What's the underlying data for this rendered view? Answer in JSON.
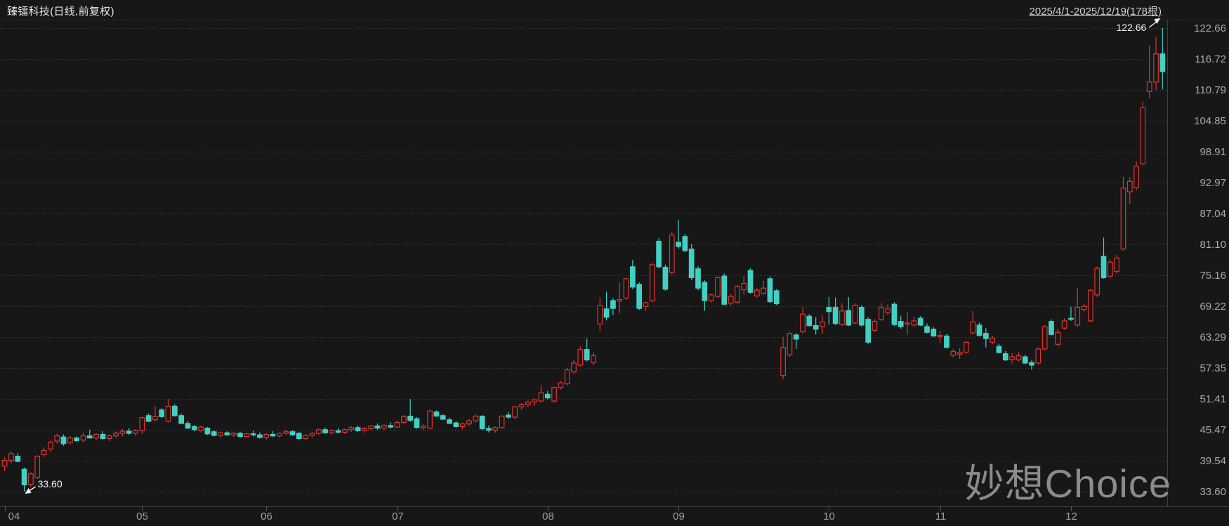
{
  "header": {
    "title": "臻镭科技(日线,前复权)",
    "range_label": "2025/4/1-2025/12/19(178根)"
  },
  "watermark": "妙想Choice",
  "annotations": {
    "high_label": "122.66",
    "high_bar": 177,
    "low_label": "33.60",
    "low_bar": 3
  },
  "colors": {
    "background": "#171717",
    "up": "#e0342c",
    "down": "#43d0c4",
    "grid": "#4e4e4e",
    "border": "#3f3f3f",
    "axis_text": "#a9a9a9",
    "annotation": "#f5f5f5"
  },
  "y_axis": {
    "labels": [
      "122.66",
      "116.72",
      "110.79",
      "104.85",
      "98.91",
      "92.97",
      "87.04",
      "81.10",
      "75.16",
      "69.22",
      "63.29",
      "57.35",
      "51.41",
      "45.47",
      "39.54",
      "33.60"
    ]
  },
  "x_axis": {
    "months": [
      {
        "label": "04",
        "index": 0
      },
      {
        "label": "05",
        "index": 21
      },
      {
        "label": "06",
        "index": 40
      },
      {
        "label": "07",
        "index": 60
      },
      {
        "label": "08",
        "index": 83
      },
      {
        "label": "09",
        "index": 103
      },
      {
        "label": "10",
        "index": 126
      },
      {
        "label": "11",
        "index": 143
      },
      {
        "label": "12",
        "index": 163
      }
    ]
  },
  "chart_data": {
    "type": "candlestick",
    "title": "臻镭科技(日线,前复权)",
    "period": "2025/4/1-2025/12/19",
    "bar_count": 178,
    "price_max": 122.66,
    "price_min": 33.6,
    "grid": true,
    "legend_position": "none",
    "columns": [
      "open",
      "high",
      "low",
      "close"
    ],
    "candles": [
      [
        38.5,
        40.2,
        37.5,
        39.6
      ],
      [
        39.6,
        41.3,
        39.0,
        40.9
      ],
      [
        40.4,
        41.0,
        39.2,
        39.4
      ],
      [
        37.9,
        38.2,
        33.6,
        34.9
      ],
      [
        35.0,
        37.3,
        34.6,
        37.0
      ],
      [
        36.3,
        40.6,
        36.0,
        40.4
      ],
      [
        40.7,
        42.1,
        40.2,
        41.5
      ],
      [
        41.8,
        43.4,
        41.2,
        43.1
      ],
      [
        43.3,
        44.7,
        42.8,
        44.3
      ],
      [
        44.1,
        44.6,
        42.4,
        42.8
      ],
      [
        43.0,
        44.3,
        42.6,
        43.9
      ],
      [
        43.9,
        44.2,
        43.1,
        43.4
      ],
      [
        43.5,
        44.9,
        43.1,
        44.3
      ],
      [
        44.3,
        45.5,
        43.8,
        43.9
      ],
      [
        43.9,
        44.8,
        43.4,
        44.6
      ],
      [
        44.6,
        45.2,
        43.6,
        43.8
      ],
      [
        43.8,
        44.6,
        43.3,
        44.3
      ],
      [
        44.3,
        45.1,
        43.9,
        44.8
      ],
      [
        44.8,
        45.6,
        44.2,
        45.2
      ],
      [
        45.2,
        45.8,
        44.5,
        44.8
      ],
      [
        44.8,
        45.6,
        44.3,
        45.3
      ],
      [
        45.3,
        48.0,
        44.7,
        47.8
      ],
      [
        48.2,
        48.6,
        47.0,
        47.1
      ],
      [
        47.4,
        50.0,
        47.1,
        48.0
      ],
      [
        49.3,
        49.6,
        47.8,
        48.0
      ],
      [
        47.1,
        51.4,
        46.9,
        50.0
      ],
      [
        50.0,
        50.4,
        48.0,
        48.2
      ],
      [
        48.2,
        48.6,
        46.5,
        46.7
      ],
      [
        46.7,
        47.2,
        45.6,
        45.8
      ],
      [
        46.1,
        46.4,
        45.2,
        45.5
      ],
      [
        45.3,
        46.3,
        45.0,
        46.0
      ],
      [
        45.8,
        46.0,
        44.5,
        44.7
      ],
      [
        45.1,
        45.4,
        44.2,
        44.4
      ],
      [
        44.4,
        45.1,
        44.0,
        44.9
      ],
      [
        44.9,
        45.2,
        44.3,
        44.5
      ],
      [
        44.5,
        45.0,
        44.1,
        44.8
      ],
      [
        44.8,
        45.1,
        44.0,
        44.2
      ],
      [
        44.2,
        44.9,
        43.9,
        44.7
      ],
      [
        44.7,
        45.3,
        44.2,
        44.5
      ],
      [
        44.5,
        45.0,
        43.8,
        44.0
      ],
      [
        44.0,
        44.8,
        43.6,
        44.6
      ],
      [
        44.6,
        45.2,
        44.1,
        44.3
      ],
      [
        44.3,
        45.0,
        43.9,
        44.8
      ],
      [
        44.8,
        45.5,
        44.4,
        45.1
      ],
      [
        45.1,
        45.4,
        44.3,
        44.5
      ],
      [
        44.8,
        45.0,
        43.6,
        43.8
      ],
      [
        43.8,
        44.6,
        43.5,
        44.4
      ],
      [
        44.4,
        45.0,
        44.0,
        44.8
      ],
      [
        44.8,
        45.7,
        44.5,
        45.5
      ],
      [
        45.5,
        45.9,
        44.7,
        44.9
      ],
      [
        44.9,
        45.6,
        44.5,
        45.3
      ],
      [
        45.3,
        45.8,
        44.8,
        45.0
      ],
      [
        45.0,
        45.7,
        44.7,
        45.5
      ],
      [
        45.5,
        46.2,
        45.1,
        45.9
      ],
      [
        45.9,
        46.3,
        45.1,
        45.3
      ],
      [
        45.3,
        46.0,
        44.9,
        45.7
      ],
      [
        45.7,
        46.4,
        45.3,
        46.2
      ],
      [
        46.2,
        46.7,
        45.5,
        45.8
      ],
      [
        45.8,
        46.6,
        45.4,
        46.3
      ],
      [
        46.3,
        46.9,
        45.7,
        46.0
      ],
      [
        46.0,
        47.2,
        45.8,
        46.9
      ],
      [
        46.9,
        48.3,
        46.6,
        48.0
      ],
      [
        48.1,
        51.4,
        47.0,
        47.3
      ],
      [
        47.6,
        47.9,
        45.7,
        45.9
      ],
      [
        45.9,
        46.5,
        45.4,
        46.2
      ],
      [
        45.8,
        49.3,
        45.6,
        49.1
      ],
      [
        48.9,
        49.2,
        48.0,
        48.1
      ],
      [
        48.2,
        48.5,
        47.4,
        47.5
      ],
      [
        47.4,
        47.8,
        46.6,
        46.7
      ],
      [
        46.8,
        47.1,
        45.9,
        46.1
      ],
      [
        46.1,
        46.8,
        45.6,
        46.6
      ],
      [
        46.6,
        47.5,
        46.2,
        47.2
      ],
      [
        47.2,
        48.4,
        46.9,
        48.1
      ],
      [
        48.1,
        48.3,
        45.4,
        45.7
      ],
      [
        45.7,
        46.3,
        45.0,
        45.4
      ],
      [
        45.4,
        46.1,
        44.9,
        45.9
      ],
      [
        45.9,
        48.3,
        45.6,
        48.1
      ],
      [
        48.3,
        48.9,
        47.6,
        47.9
      ],
      [
        47.9,
        50.1,
        47.5,
        49.9
      ],
      [
        49.9,
        50.6,
        49.3,
        50.3
      ],
      [
        50.3,
        51.1,
        49.8,
        50.8
      ],
      [
        50.8,
        51.5,
        50.1,
        51.2
      ],
      [
        51.0,
        54.0,
        50.7,
        52.6
      ],
      [
        52.3,
        52.9,
        51.3,
        51.6
      ],
      [
        51.0,
        53.8,
        50.7,
        53.6
      ],
      [
        53.6,
        54.9,
        53.2,
        54.5
      ],
      [
        54.3,
        57.3,
        54.0,
        57.0
      ],
      [
        56.6,
        58.9,
        56.2,
        58.3
      ],
      [
        57.9,
        61.5,
        57.6,
        60.9
      ],
      [
        60.9,
        63.0,
        58.6,
        58.9
      ],
      [
        58.4,
        60.3,
        57.9,
        59.7
      ],
      [
        65.8,
        70.9,
        64.5,
        69.4
      ],
      [
        68.7,
        72.0,
        66.5,
        67.1
      ],
      [
        70.3,
        70.8,
        67.5,
        68.8
      ],
      [
        70.2,
        73.8,
        67.8,
        70.5
      ],
      [
        70.8,
        74.7,
        70.4,
        74.5
      ],
      [
        76.8,
        78.1,
        72.5,
        72.9
      ],
      [
        73.4,
        73.8,
        68.5,
        68.8
      ],
      [
        69.2,
        70.1,
        68.3,
        69.9
      ],
      [
        70.3,
        77.6,
        70.0,
        77.2
      ],
      [
        81.7,
        82.3,
        76.5,
        76.8
      ],
      [
        76.7,
        77.2,
        72.2,
        72.5
      ],
      [
        75.7,
        83.5,
        75.3,
        82.9
      ],
      [
        81.5,
        85.8,
        80.3,
        80.7
      ],
      [
        82.6,
        83.1,
        79.6,
        79.9
      ],
      [
        80.2,
        81.2,
        74.2,
        74.7
      ],
      [
        76.4,
        76.9,
        72.3,
        72.7
      ],
      [
        73.8,
        74.2,
        68.3,
        70.3
      ],
      [
        70.3,
        71.7,
        69.9,
        71.4
      ],
      [
        71.1,
        74.9,
        70.8,
        74.7
      ],
      [
        75.0,
        75.5,
        69.4,
        69.6
      ],
      [
        69.8,
        71.6,
        69.3,
        71.1
      ],
      [
        70.0,
        73.3,
        69.7,
        73.0
      ],
      [
        72.4,
        75.0,
        71.5,
        73.6
      ],
      [
        76.1,
        76.5,
        71.6,
        71.9
      ],
      [
        71.2,
        72.7,
        70.9,
        72.3
      ],
      [
        71.7,
        74.1,
        71.4,
        72.7
      ],
      [
        74.5,
        75.0,
        69.8,
        70.1
      ],
      [
        72.2,
        72.5,
        69.4,
        69.7
      ],
      [
        55.9,
        63.3,
        55.2,
        61.3
      ],
      [
        59.9,
        64.3,
        59.5,
        64.0
      ],
      [
        63.7,
        64.0,
        61.0,
        62.9
      ],
      [
        64.3,
        69.1,
        64.0,
        67.7
      ],
      [
        67.3,
        67.7,
        65.3,
        65.5
      ],
      [
        65.5,
        67.1,
        63.8,
        64.8
      ],
      [
        65.3,
        67.5,
        63.9,
        66.2
      ],
      [
        69.0,
        71.0,
        65.7,
        68.2
      ],
      [
        69.0,
        70.9,
        65.6,
        65.9
      ],
      [
        65.7,
        69.8,
        65.4,
        68.3
      ],
      [
        68.4,
        71.0,
        65.4,
        65.6
      ],
      [
        66.0,
        69.8,
        65.7,
        69.4
      ],
      [
        69.0,
        69.4,
        65.3,
        65.6
      ],
      [
        66.7,
        67.1,
        62.0,
        62.3
      ],
      [
        64.6,
        66.7,
        64.3,
        66.3
      ],
      [
        66.7,
        69.8,
        66.4,
        69.0
      ],
      [
        68.0,
        69.6,
        67.5,
        68.7
      ],
      [
        69.6,
        70.0,
        65.4,
        65.7
      ],
      [
        66.3,
        67.4,
        64.9,
        65.3
      ],
      [
        65.8,
        68.0,
        63.8,
        66.0
      ],
      [
        65.6,
        67.2,
        65.2,
        66.4
      ],
      [
        66.9,
        67.3,
        65.4,
        65.6
      ],
      [
        65.3,
        65.9,
        64.0,
        64.2
      ],
      [
        64.8,
        65.2,
        63.3,
        63.5
      ],
      [
        63.4,
        64.5,
        62.1,
        63.6
      ],
      [
        63.5,
        63.9,
        61.1,
        61.3
      ],
      [
        59.8,
        61.0,
        59.4,
        60.5
      ],
      [
        60.0,
        61.1,
        59.1,
        60.3
      ],
      [
        60.4,
        62.6,
        60.1,
        62.3
      ],
      [
        64.1,
        68.3,
        63.8,
        66.2
      ],
      [
        65.6,
        66.1,
        63.4,
        63.6
      ],
      [
        64.0,
        65.0,
        61.3,
        63.0
      ],
      [
        62.3,
        63.6,
        61.9,
        63.1
      ],
      [
        61.5,
        62.0,
        60.1,
        60.3
      ],
      [
        60.1,
        60.6,
        58.7,
        58.9
      ],
      [
        59.0,
        60.2,
        58.2,
        59.5
      ],
      [
        58.9,
        60.4,
        58.6,
        59.7
      ],
      [
        59.5,
        59.9,
        58.1,
        58.3
      ],
      [
        58.4,
        58.9,
        57.0,
        57.9
      ],
      [
        58.3,
        61.3,
        58.0,
        61.0
      ],
      [
        61.0,
        65.6,
        60.7,
        65.3
      ],
      [
        66.3,
        66.7,
        63.6,
        63.8
      ],
      [
        61.9,
        64.9,
        61.5,
        64.2
      ],
      [
        65.0,
        66.9,
        64.7,
        66.4
      ],
      [
        66.9,
        69.1,
        66.4,
        66.7
      ],
      [
        65.6,
        72.7,
        65.3,
        69.0
      ],
      [
        68.6,
        69.6,
        68.0,
        69.2
      ],
      [
        66.4,
        72.5,
        66.1,
        72.3
      ],
      [
        71.4,
        76.9,
        71.0,
        76.5
      ],
      [
        78.8,
        82.4,
        74.5,
        74.7
      ],
      [
        75.0,
        78.2,
        74.6,
        77.7
      ],
      [
        75.9,
        79.1,
        75.5,
        78.5
      ],
      [
        80.2,
        94.1,
        79.9,
        91.9
      ],
      [
        91.2,
        94.0,
        88.9,
        93.2
      ],
      [
        92.0,
        97.0,
        91.5,
        96.1
      ],
      [
        96.6,
        108.5,
        96.2,
        107.4
      ],
      [
        110.5,
        119.3,
        109.2,
        112.3
      ],
      [
        112.3,
        121.0,
        110.8,
        117.7
      ],
      [
        117.7,
        122.66,
        110.9,
        114.3
      ]
    ]
  }
}
